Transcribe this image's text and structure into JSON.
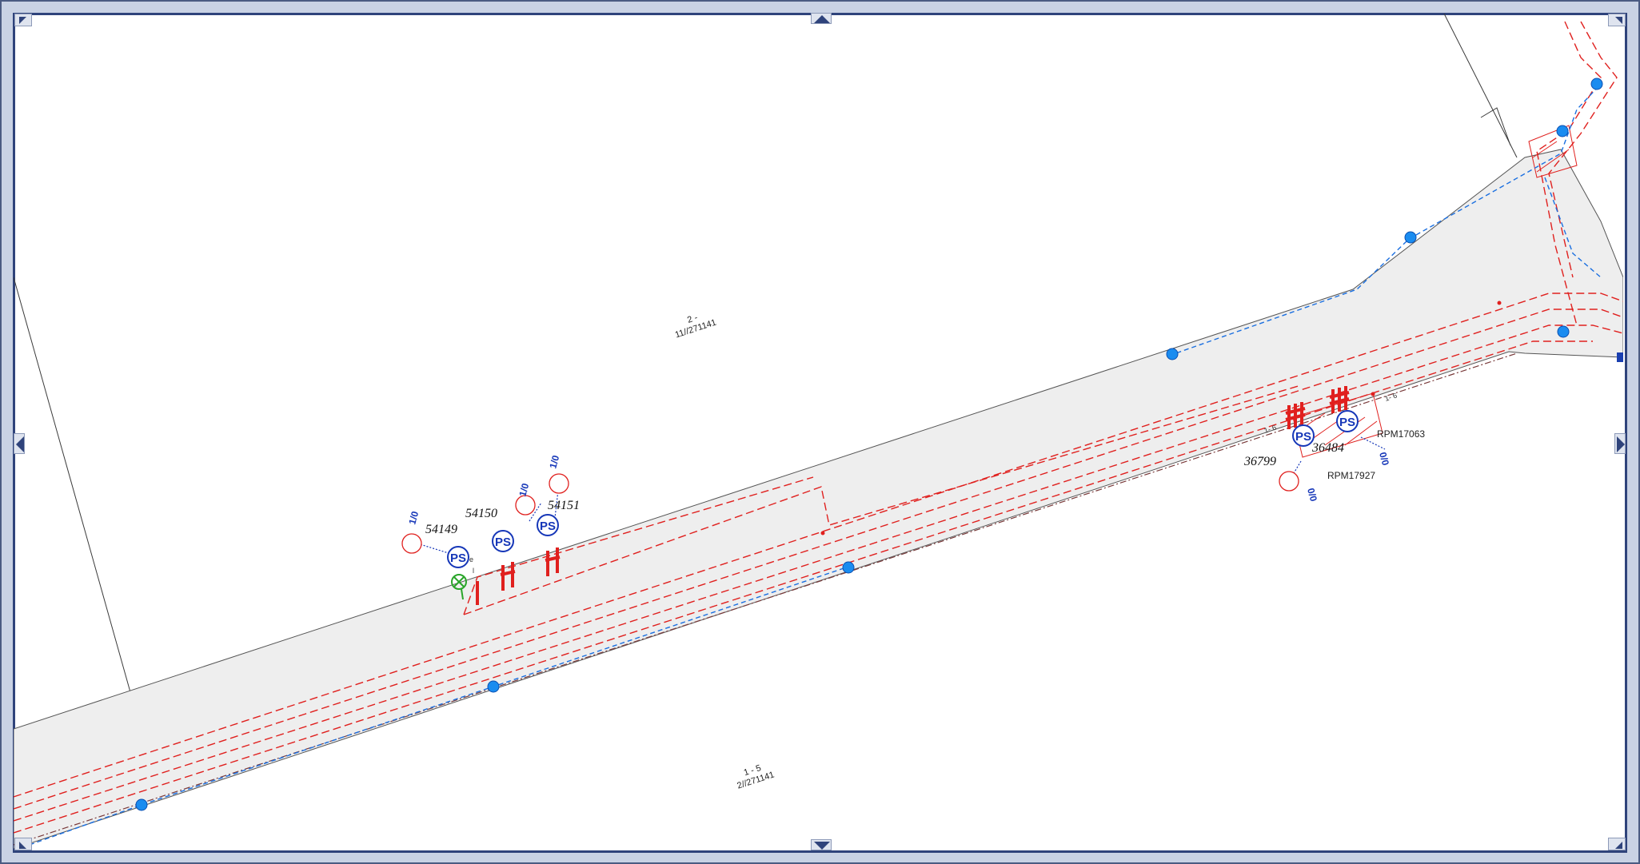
{
  "parcels": [
    {
      "top": "2 -",
      "bottom": "11//271141"
    },
    {
      "top": "1 - 5",
      "bottom": "2//271141"
    }
  ],
  "poles": [
    {
      "number": "54149",
      "type": "PS",
      "sub": "1/0"
    },
    {
      "number": "54150",
      "type": "PS",
      "sub": "1/0"
    },
    {
      "number": "54151",
      "type": "PS",
      "sub": "1/0"
    },
    {
      "number": "36799",
      "type": "PS",
      "sub": "0/0"
    },
    {
      "number": "36484",
      "type": "PS",
      "sub": "0/0"
    }
  ],
  "references": [
    "RPM17063",
    "RPM17927"
  ],
  "navigation": {
    "up_icon": "arrow-up-icon",
    "down_icon": "arrow-down-icon",
    "left_icon": "arrow-left-icon",
    "right_icon": "arrow-right-icon"
  },
  "colors": {
    "road_fill": "#eeeeee",
    "power_line": "#e0201e",
    "water_line": "#1a6fe0",
    "pole_symbol": "#1637b8",
    "frame": "#2f437b"
  }
}
